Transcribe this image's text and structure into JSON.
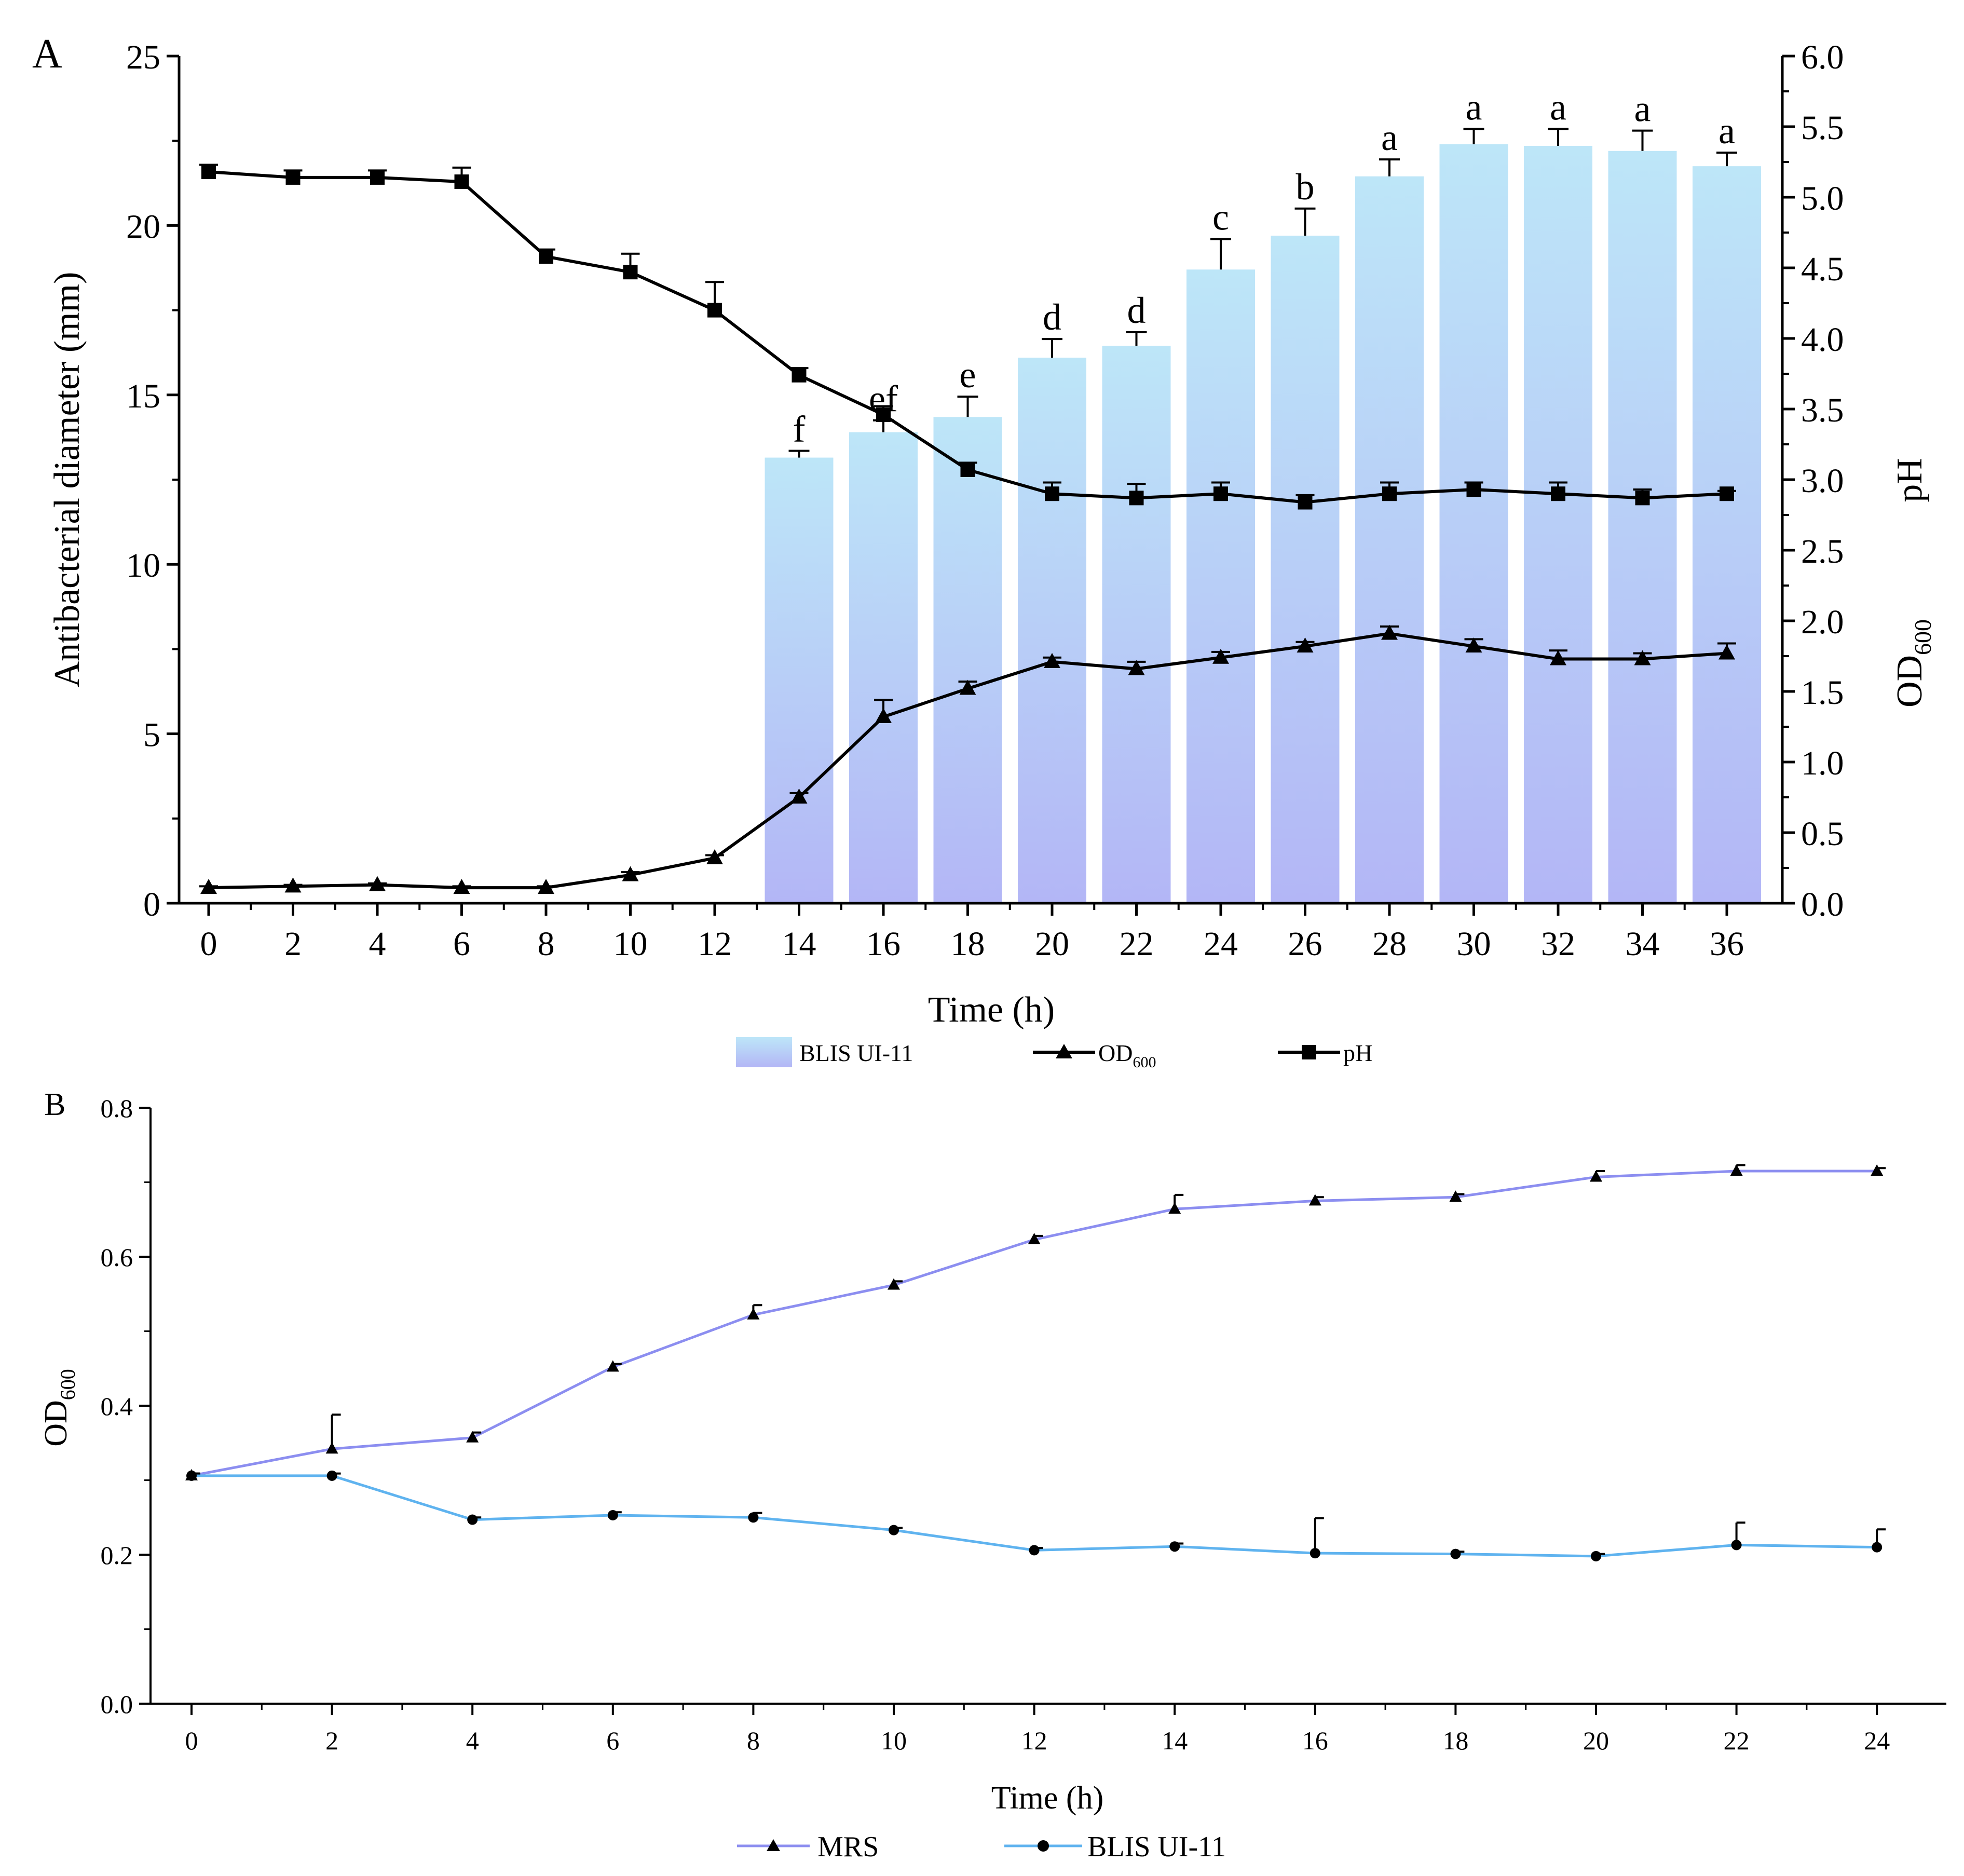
{
  "chart_data": [
    {
      "panel_label": "A",
      "type": "bar+line",
      "x_label": "Time (h)",
      "y_left_label": "Antibacterial diameter (mm)",
      "y_right_label_top": "pH",
      "y_right_label_bottom_main": "OD",
      "y_right_label_bottom_sub": "600",
      "ylim_left": [
        0,
        25
      ],
      "ylim_right": [
        0,
        6
      ],
      "y_left_ticks": [
        "0",
        "5",
        "10",
        "15",
        "20",
        "25"
      ],
      "y_right_ticks": [
        "0.0",
        "0.5",
        "1.0",
        "1.5",
        "2.0",
        "2.5",
        "3.0",
        "3.5",
        "4.0",
        "4.5",
        "5.0",
        "5.5",
        "6.0"
      ],
      "x": [
        0,
        2,
        4,
        6,
        8,
        10,
        12,
        14,
        16,
        18,
        20,
        22,
        24,
        26,
        28,
        30,
        32,
        34,
        36
      ],
      "x_tick_labels": [
        "0",
        "2",
        "4",
        "6",
        "8",
        "10",
        "12",
        "14",
        "16",
        "18",
        "20",
        "22",
        "24",
        "26",
        "28",
        "30",
        "32",
        "34",
        "36"
      ],
      "bars": {
        "name": "BLIS UI-11",
        "x": [
          14,
          16,
          18,
          20,
          22,
          24,
          26,
          28,
          30,
          32,
          34,
          36
        ],
        "values": [
          13.15,
          13.9,
          14.35,
          16.1,
          16.45,
          18.7,
          19.7,
          21.45,
          22.4,
          22.35,
          22.2,
          21.75
        ],
        "errors": [
          0.2,
          0.35,
          0.6,
          0.55,
          0.4,
          0.9,
          0.8,
          0.5,
          0.45,
          0.5,
          0.6,
          0.4
        ],
        "letters": [
          "f",
          "ef",
          "e",
          "d",
          "d",
          "c",
          "b",
          "a",
          "a",
          "a",
          "a",
          "a"
        ],
        "color_top": "#bde6f8",
        "color_bottom": "#b3b6f6"
      },
      "ph": {
        "name": "pH",
        "values": [
          5.18,
          5.14,
          5.14,
          5.11,
          4.58,
          4.47,
          4.2,
          3.74,
          3.46,
          3.07,
          2.9,
          2.87,
          2.9,
          2.84,
          2.9,
          2.93,
          2.9,
          2.87,
          2.9
        ],
        "errors": [
          0.05,
          0.05,
          0.05,
          0.1,
          0.05,
          0.13,
          0.2,
          0.05,
          0.06,
          0.05,
          0.08,
          0.1,
          0.08,
          0.05,
          0.08,
          0.05,
          0.08,
          0.06,
          0.02
        ]
      },
      "od600": {
        "name": "OD600",
        "values": [
          0.11,
          0.12,
          0.13,
          0.11,
          0.11,
          0.2,
          0.32,
          0.75,
          1.32,
          1.52,
          1.71,
          1.66,
          1.74,
          1.82,
          1.91,
          1.82,
          1.73,
          1.73,
          1.77
        ],
        "errors": [
          0.01,
          0.01,
          0.01,
          0.01,
          0.01,
          0.02,
          0.02,
          0.03,
          0.12,
          0.05,
          0.03,
          0.05,
          0.04,
          0.03,
          0.05,
          0.05,
          0.06,
          0.04,
          0.07
        ]
      },
      "legend": [
        {
          "label": "BLIS UI-11",
          "sub": ""
        },
        {
          "label": "OD",
          "sub": "600"
        },
        {
          "label": "pH",
          "sub": ""
        }
      ]
    },
    {
      "panel_label": "B",
      "type": "line",
      "x_label": "Time (h)",
      "y_label_main": "OD",
      "y_label_sub": "600",
      "ylim": [
        0,
        0.8
      ],
      "xlim": [
        0,
        24
      ],
      "y_ticks": [
        "0.0",
        "0.2",
        "0.4",
        "0.6",
        "0.8"
      ],
      "x": [
        0,
        2,
        4,
        6,
        8,
        10,
        12,
        14,
        16,
        18,
        20,
        22,
        24
      ],
      "x_tick_labels": [
        "0",
        "2",
        "4",
        "6",
        "8",
        "10",
        "12",
        "14",
        "16",
        "18",
        "20",
        "22",
        "24"
      ],
      "series": [
        {
          "name": "MRS",
          "color": "#8c8ef0",
          "marker": "triangle",
          "values": [
            0.306,
            0.342,
            0.357,
            0.452,
            0.522,
            0.562,
            0.623,
            0.664,
            0.675,
            0.68,
            0.707,
            0.715,
            0.715
          ],
          "errors": [
            0.003,
            0.046,
            0.007,
            0.004,
            0.013,
            0.005,
            0.005,
            0.019,
            0.005,
            0.004,
            0.008,
            0.008,
            0.004
          ]
        },
        {
          "name": "BLIS UI-11",
          "color": "#5fb3ef",
          "marker": "circle",
          "values": [
            0.306,
            0.306,
            0.247,
            0.253,
            0.25,
            0.233,
            0.206,
            0.211,
            0.202,
            0.201,
            0.198,
            0.213,
            0.21
          ],
          "errors": [
            0.003,
            0.003,
            0.003,
            0.004,
            0.006,
            0.003,
            0.003,
            0.004,
            0.047,
            0.003,
            0.003,
            0.03,
            0.024
          ]
        }
      ]
    }
  ]
}
